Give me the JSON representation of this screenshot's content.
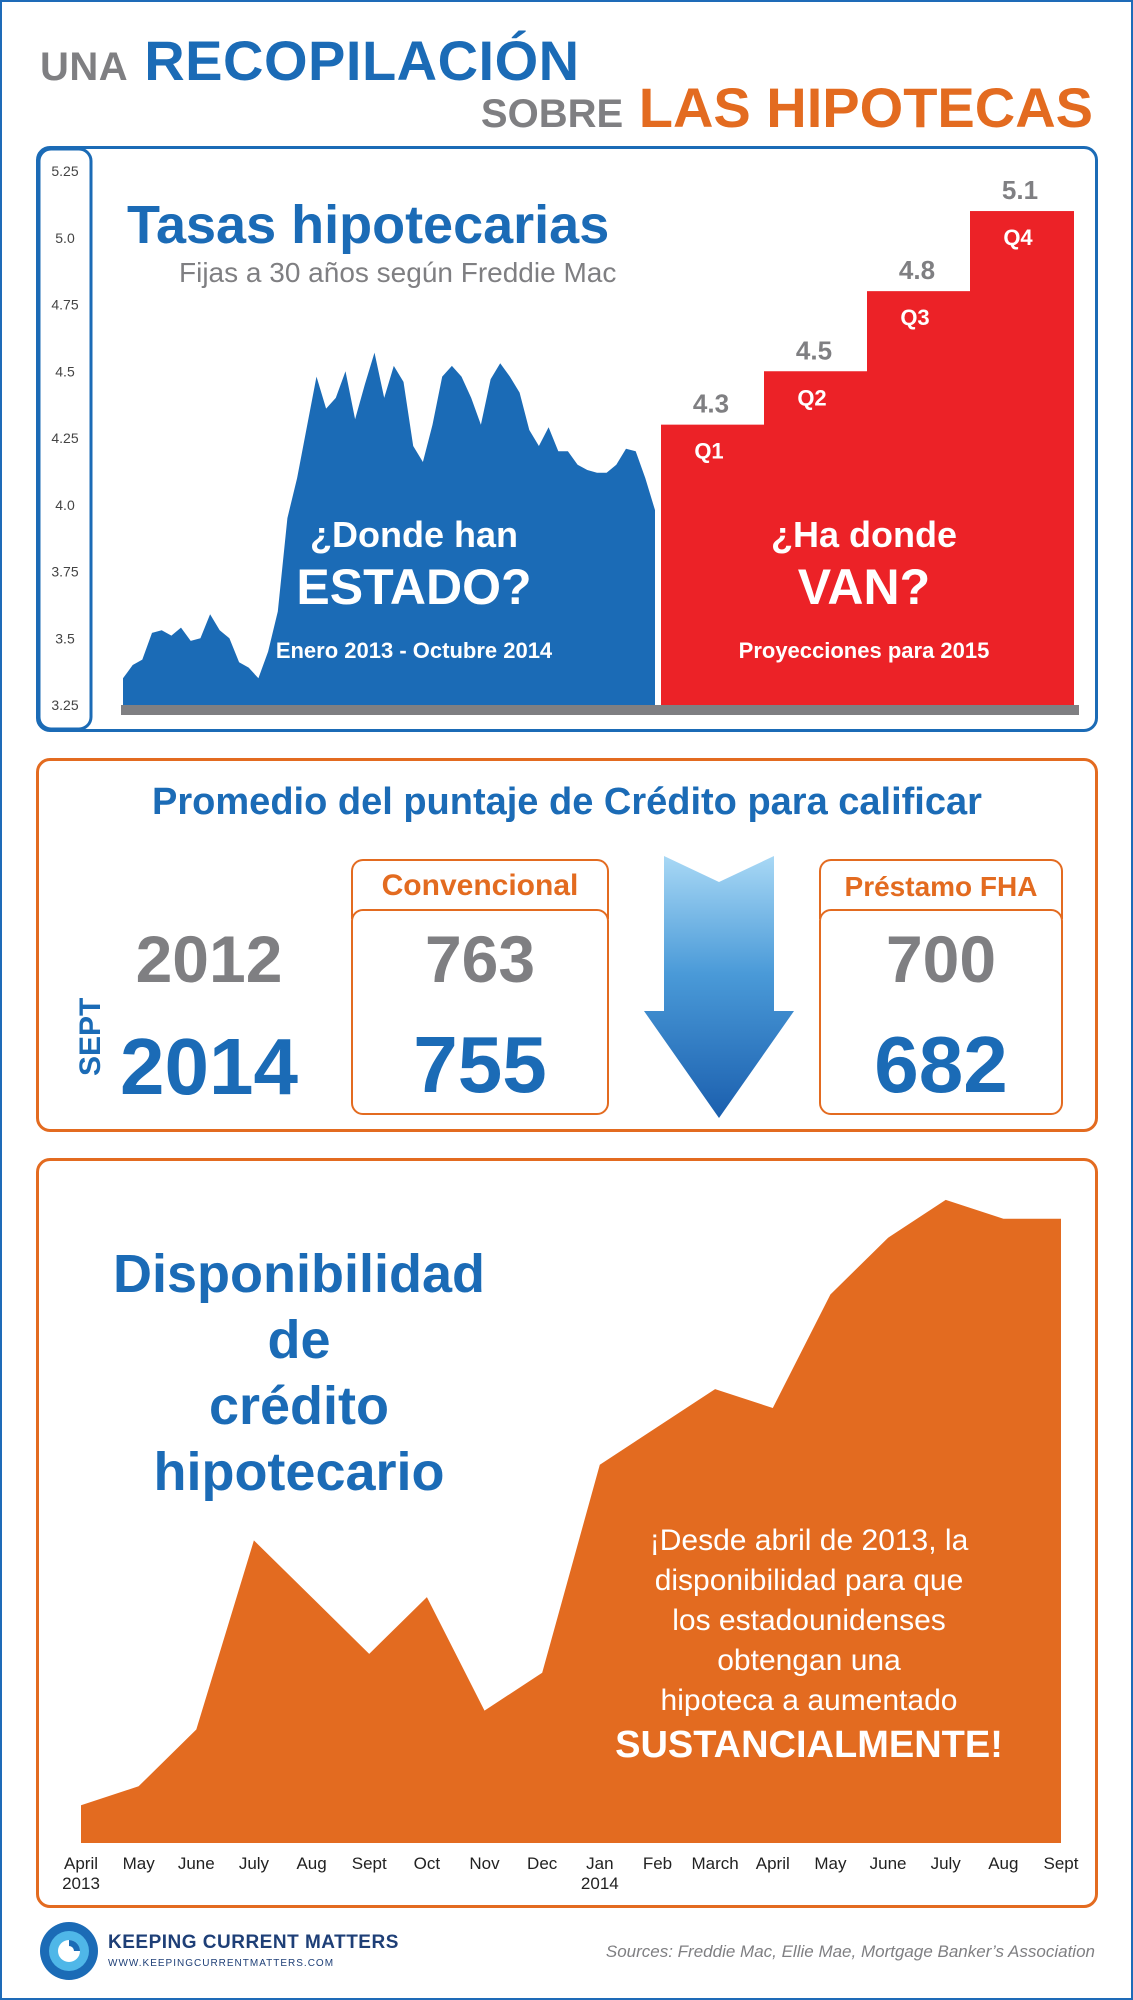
{
  "header": {
    "una": "UNA",
    "recopilacion": "RECOPILACIÓN",
    "sobre": "SOBRE",
    "las_hipotecas": "LAS HIPOTECAS"
  },
  "rates": {
    "title": "Tasas hipotecarias",
    "subtitle": "Fijas a 30 años según Freddie Mac",
    "past_q1": "¿Donde han",
    "past_q2": "ESTADO?",
    "past_range": "Enero 2013 - Octubre 2014",
    "future_q1": "¿Ha donde",
    "future_q2": "VAN?",
    "future_range": "Proyecciones para 2015"
  },
  "credit": {
    "title": "Promedio del puntaje de Crédito para calificar",
    "year_2012": "2012",
    "sept": "SEPT",
    "year_2014": "2014",
    "conv_label": "Convencional",
    "conv_2012": "763",
    "conv_2014": "755",
    "fha_label": "Préstamo FHA",
    "fha_2012": "700",
    "fha_2014": "682"
  },
  "availability": {
    "title_l1": "Disponibilidad de",
    "title_l2": "crédito hipotecario",
    "msg1": "¡Desde abril de 2013, la",
    "msg2": "disponibilidad para que",
    "msg3": "los estadounidenses",
    "msg4": "obtengan una",
    "msg5": "hipoteca a aumentado",
    "msg6": "SUSTANCIALMENTE!"
  },
  "footer": {
    "brand": "KEEPING CURRENT MATTERS",
    "url": "WWW.KEEPINGCURRENTMATTERS.COM",
    "sources": "Sources: Freddie Mac, Ellie Mae, Mortgage Banker’s Association"
  },
  "colors": {
    "blue": "#1b6bb6",
    "red": "#ec2227",
    "orange": "#e36b20",
    "gray": "#7f7f82"
  },
  "chart_data": [
    {
      "type": "area",
      "y_ticks": [
        "5.25",
        "5.0",
        "4.75",
        "4.5",
        "4.25",
        "4.0",
        "3.75",
        "3.5",
        "3.25"
      ],
      "ylim": [
        3.25,
        5.25
      ],
      "series": [
        {
          "values": [
            3.35,
            3.4,
            3.42,
            3.52,
            3.53,
            3.51,
            3.54,
            3.49,
            3.5,
            3.59,
            3.53,
            3.5,
            3.41,
            3.39,
            3.35,
            3.45,
            3.6,
            3.95,
            4.1,
            4.29,
            4.48,
            4.36,
            4.4,
            4.5,
            4.32,
            4.45,
            4.57,
            4.4,
            4.52,
            4.46,
            4.22,
            4.16,
            4.3,
            4.48,
            4.52,
            4.48,
            4.4,
            4.3,
            4.47,
            4.53,
            4.48,
            4.42,
            4.28,
            4.22,
            4.29,
            4.2,
            4.2,
            4.15,
            4.13,
            4.12,
            4.12,
            4.15,
            4.21,
            4.2,
            4.1,
            3.98
          ]
        }
      ]
    },
    {
      "type": "bar",
      "categories": [
        "Q1",
        "Q2",
        "Q3",
        "Q4"
      ],
      "values": [
        4.3,
        4.5,
        4.8,
        5.1
      ],
      "value_labels": [
        "4.3",
        "4.5",
        "4.8",
        "5.1"
      ],
      "ylim": [
        3.25,
        5.25
      ]
    },
    {
      "type": "area",
      "categories": [
        "April\n2013",
        "May",
        "June",
        "July",
        "Aug",
        "Sept",
        "Oct",
        "Nov",
        "Dec",
        "Jan\n2014",
        "Feb",
        "March",
        "April",
        "May",
        "June",
        "July",
        "Aug",
        "Sept"
      ],
      "values": [
        114,
        115,
        118,
        128,
        125,
        122,
        125,
        119,
        121,
        132,
        134,
        136,
        135,
        141,
        144,
        146,
        145,
        145
      ],
      "ylim": [
        112,
        147
      ]
    }
  ]
}
